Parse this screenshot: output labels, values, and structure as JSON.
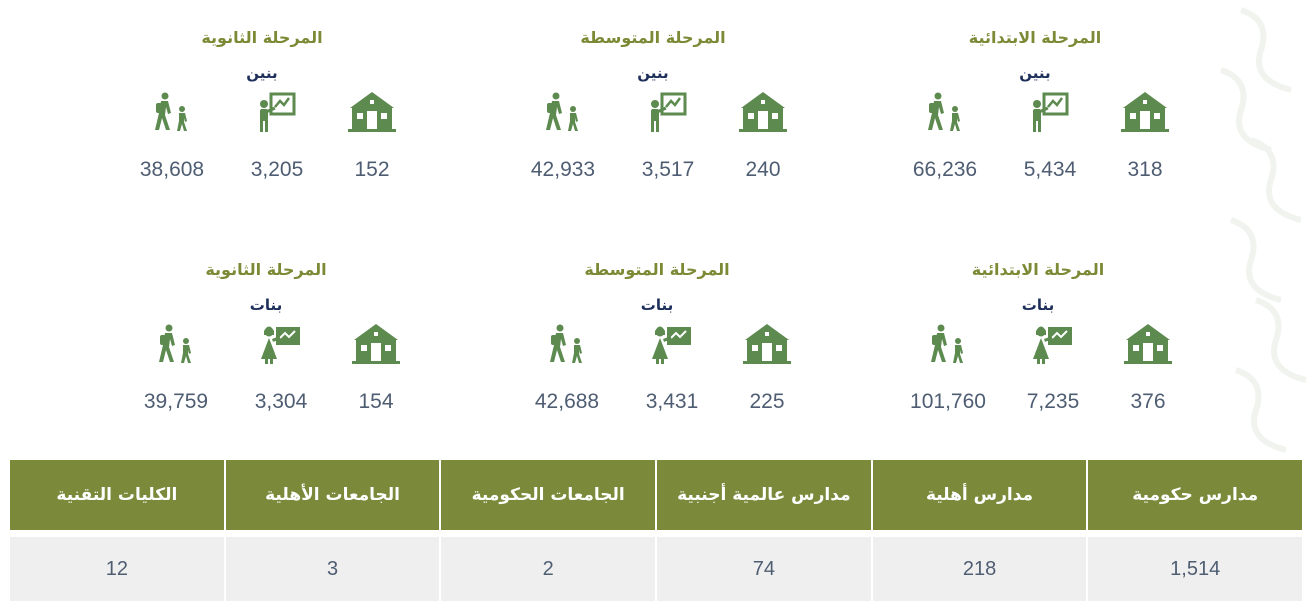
{
  "stages_boys": {
    "subtitle": "بنين",
    "primary": {
      "title": "المرحلة الابتدائية",
      "schools": "318",
      "teachers": "5,434",
      "students": "66,236"
    },
    "intermediate": {
      "title": "المرحلة المتوسطة",
      "schools": "240",
      "teachers": "3,517",
      "students": "42,933"
    },
    "secondary": {
      "title": "المرحلة الثانوية",
      "schools": "152",
      "teachers": "3,205",
      "students": "38,608"
    }
  },
  "stages_girls": {
    "subtitle": "بنات",
    "primary": {
      "title": "المرحلة الابتدائية",
      "schools": "376",
      "teachers": "7,235",
      "students": "101,760"
    },
    "intermediate": {
      "title": "المرحلة المتوسطة",
      "schools": "225",
      "teachers": "3,431",
      "students": "42,688"
    },
    "secondary": {
      "title": "المرحلة الثانوية",
      "schools": "154",
      "teachers": "3,304",
      "students": "39,759"
    }
  },
  "summary": {
    "headers": [
      "مدارس حكومية",
      "مدارس أهلية",
      "مدارس عالمية أجنبية",
      "الجامعات الحكومية",
      "الجامعات الأهلية",
      "الكليات التقنية"
    ],
    "values": [
      "1,514",
      "218",
      "74",
      "2",
      "3",
      "12"
    ]
  },
  "colors": {
    "accent": "#7a8a3a",
    "icon": "#5c8a4f",
    "number": "#4e5d72",
    "subtitle": "#1d2f5a"
  },
  "icons": {
    "school": "school-building-icon",
    "teacher_male": "male-teacher-board-icon",
    "teacher_female": "female-teacher-board-icon",
    "students": "walking-students-icon"
  }
}
